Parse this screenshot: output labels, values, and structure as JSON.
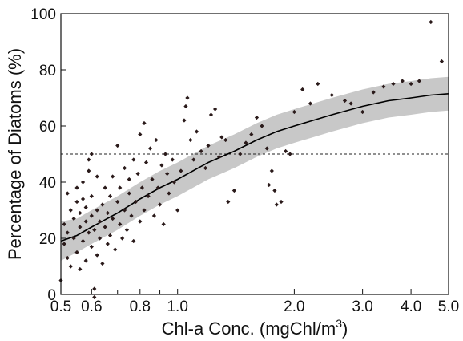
{
  "chart_data": {
    "type": "scatter",
    "xscale": "log",
    "xlabel": "Chl-a Conc. (mgChl/m",
    "xlabel_superscript": "3",
    "xlabel_suffix": ")",
    "ylabel": "Percentage of Diatoms (%)",
    "xlim": [
      0.5,
      5.0
    ],
    "ylim": [
      0,
      100
    ],
    "x_ticks": [
      {
        "value": 0.5,
        "label": "0.5"
      },
      {
        "value": 0.6,
        "label": "0.6"
      },
      {
        "value": 0.8,
        "label": "0.8"
      },
      {
        "value": 1.0,
        "label": "1.0"
      },
      {
        "value": 2.0,
        "label": "2.0"
      },
      {
        "value": 3.0,
        "label": "3.0"
      },
      {
        "value": 4.0,
        "label": "4.0"
      },
      {
        "value": 5.0,
        "label": "5.0"
      }
    ],
    "x_minor_ticks": [
      0.7,
      0.9
    ],
    "y_ticks": [
      {
        "value": 0,
        "label": "0"
      },
      {
        "value": 20,
        "label": "20"
      },
      {
        "value": 40,
        "label": "40"
      },
      {
        "value": 60,
        "label": "60"
      },
      {
        "value": 80,
        "label": "80"
      },
      {
        "value": 100,
        "label": "100"
      }
    ],
    "reference_line": {
      "y": 50,
      "style": "dashed"
    },
    "fit_curve": {
      "x": [
        0.5,
        0.55,
        0.6,
        0.7,
        0.8,
        0.9,
        1.0,
        1.2,
        1.4,
        1.6,
        1.8,
        2.0,
        2.5,
        3.0,
        3.5,
        4.0,
        4.5,
        5.0
      ],
      "y": [
        19,
        21,
        24,
        29,
        34,
        38,
        41,
        47,
        51,
        55,
        58,
        60,
        64,
        67,
        69,
        70,
        71,
        71.5
      ]
    },
    "confidence_band": {
      "x": [
        0.5,
        0.55,
        0.6,
        0.7,
        0.8,
        0.9,
        1.0,
        1.2,
        1.4,
        1.6,
        1.8,
        2.0,
        2.5,
        3.0,
        3.5,
        4.0,
        4.5,
        5.0
      ],
      "lower": [
        12,
        15,
        18,
        23,
        28,
        32,
        35,
        41,
        45,
        49,
        52,
        54,
        58,
        61,
        63,
        64,
        65,
        65.5
      ],
      "upper": [
        26,
        27,
        30,
        35,
        40,
        44,
        47,
        53,
        57,
        61,
        64,
        66,
        70,
        73,
        75,
        76,
        77,
        77.5
      ]
    },
    "points": [
      [
        0.5,
        5
      ],
      [
        0.51,
        18
      ],
      [
        0.51,
        25
      ],
      [
        0.52,
        13
      ],
      [
        0.52,
        36
      ],
      [
        0.52,
        22
      ],
      [
        0.53,
        30
      ],
      [
        0.53,
        10
      ],
      [
        0.54,
        27
      ],
      [
        0.54,
        20
      ],
      [
        0.55,
        33
      ],
      [
        0.55,
        15
      ],
      [
        0.55,
        38
      ],
      [
        0.56,
        24
      ],
      [
        0.56,
        29
      ],
      [
        0.56,
        9
      ],
      [
        0.57,
        34
      ],
      [
        0.57,
        19
      ],
      [
        0.57,
        40
      ],
      [
        0.58,
        26
      ],
      [
        0.58,
        31
      ],
      [
        0.58,
        12
      ],
      [
        0.59,
        22
      ],
      [
        0.59,
        44
      ],
      [
        0.59,
        48
      ],
      [
        0.6,
        28
      ],
      [
        0.6,
        50
      ],
      [
        0.6,
        17
      ],
      [
        0.6,
        35
      ],
      [
        0.61,
        23
      ],
      [
        0.61,
        2
      ],
      [
        0.61,
        -1
      ],
      [
        0.62,
        30
      ],
      [
        0.62,
        14
      ],
      [
        0.62,
        42
      ],
      [
        0.63,
        26
      ],
      [
        0.63,
        20
      ],
      [
        0.64,
        32
      ],
      [
        0.64,
        11
      ],
      [
        0.65,
        38
      ],
      [
        0.65,
        24
      ],
      [
        0.66,
        18
      ],
      [
        0.66,
        29
      ],
      [
        0.67,
        35
      ],
      [
        0.67,
        21
      ],
      [
        0.68,
        42
      ],
      [
        0.68,
        27
      ],
      [
        0.69,
        16
      ],
      [
        0.7,
        53
      ],
      [
        0.7,
        33
      ],
      [
        0.71,
        25
      ],
      [
        0.71,
        38
      ],
      [
        0.72,
        20
      ],
      [
        0.73,
        45
      ],
      [
        0.73,
        30
      ],
      [
        0.74,
        23
      ],
      [
        0.75,
        41
      ],
      [
        0.75,
        36
      ],
      [
        0.76,
        28
      ],
      [
        0.77,
        48
      ],
      [
        0.77,
        19
      ],
      [
        0.78,
        33
      ],
      [
        0.79,
        43
      ],
      [
        0.8,
        26
      ],
      [
        0.8,
        57
      ],
      [
        0.81,
        38
      ],
      [
        0.82,
        61
      ],
      [
        0.82,
        30
      ],
      [
        0.83,
        47
      ],
      [
        0.84,
        35
      ],
      [
        0.85,
        52
      ],
      [
        0.86,
        41
      ],
      [
        0.87,
        28
      ],
      [
        0.88,
        55
      ],
      [
        0.89,
        38
      ],
      [
        0.9,
        32
      ],
      [
        0.91,
        46
      ],
      [
        0.92,
        25
      ],
      [
        0.93,
        50
      ],
      [
        0.94,
        43
      ],
      [
        0.95,
        36
      ],
      [
        0.97,
        48
      ],
      [
        0.98,
        40
      ],
      [
        1.0,
        30
      ],
      [
        1.02,
        44
      ],
      [
        1.04,
        62
      ],
      [
        1.05,
        67
      ],
      [
        1.06,
        70
      ],
      [
        1.08,
        55
      ],
      [
        1.1,
        48
      ],
      [
        1.12,
        58
      ],
      [
        1.15,
        51
      ],
      [
        1.18,
        45
      ],
      [
        1.2,
        53
      ],
      [
        1.22,
        64
      ],
      [
        1.25,
        66
      ],
      [
        1.28,
        49
      ],
      [
        1.3,
        56
      ],
      [
        1.33,
        55
      ],
      [
        1.35,
        33
      ],
      [
        1.4,
        37
      ],
      [
        1.45,
        50
      ],
      [
        1.5,
        54
      ],
      [
        1.55,
        57
      ],
      [
        1.6,
        63
      ],
      [
        1.65,
        60
      ],
      [
        1.7,
        52
      ],
      [
        1.72,
        39
      ],
      [
        1.75,
        44
      ],
      [
        1.78,
        37
      ],
      [
        1.8,
        32
      ],
      [
        1.85,
        33
      ],
      [
        1.9,
        51
      ],
      [
        1.95,
        50
      ],
      [
        2.0,
        65
      ],
      [
        2.1,
        73
      ],
      [
        2.2,
        68
      ],
      [
        2.3,
        75
      ],
      [
        2.5,
        71
      ],
      [
        2.7,
        69
      ],
      [
        2.8,
        68
      ],
      [
        3.0,
        65
      ],
      [
        3.2,
        72
      ],
      [
        3.4,
        74
      ],
      [
        3.6,
        75
      ],
      [
        3.8,
        76
      ],
      [
        4.0,
        75
      ],
      [
        4.2,
        76
      ],
      [
        4.5,
        97
      ],
      [
        4.8,
        83
      ]
    ]
  }
}
